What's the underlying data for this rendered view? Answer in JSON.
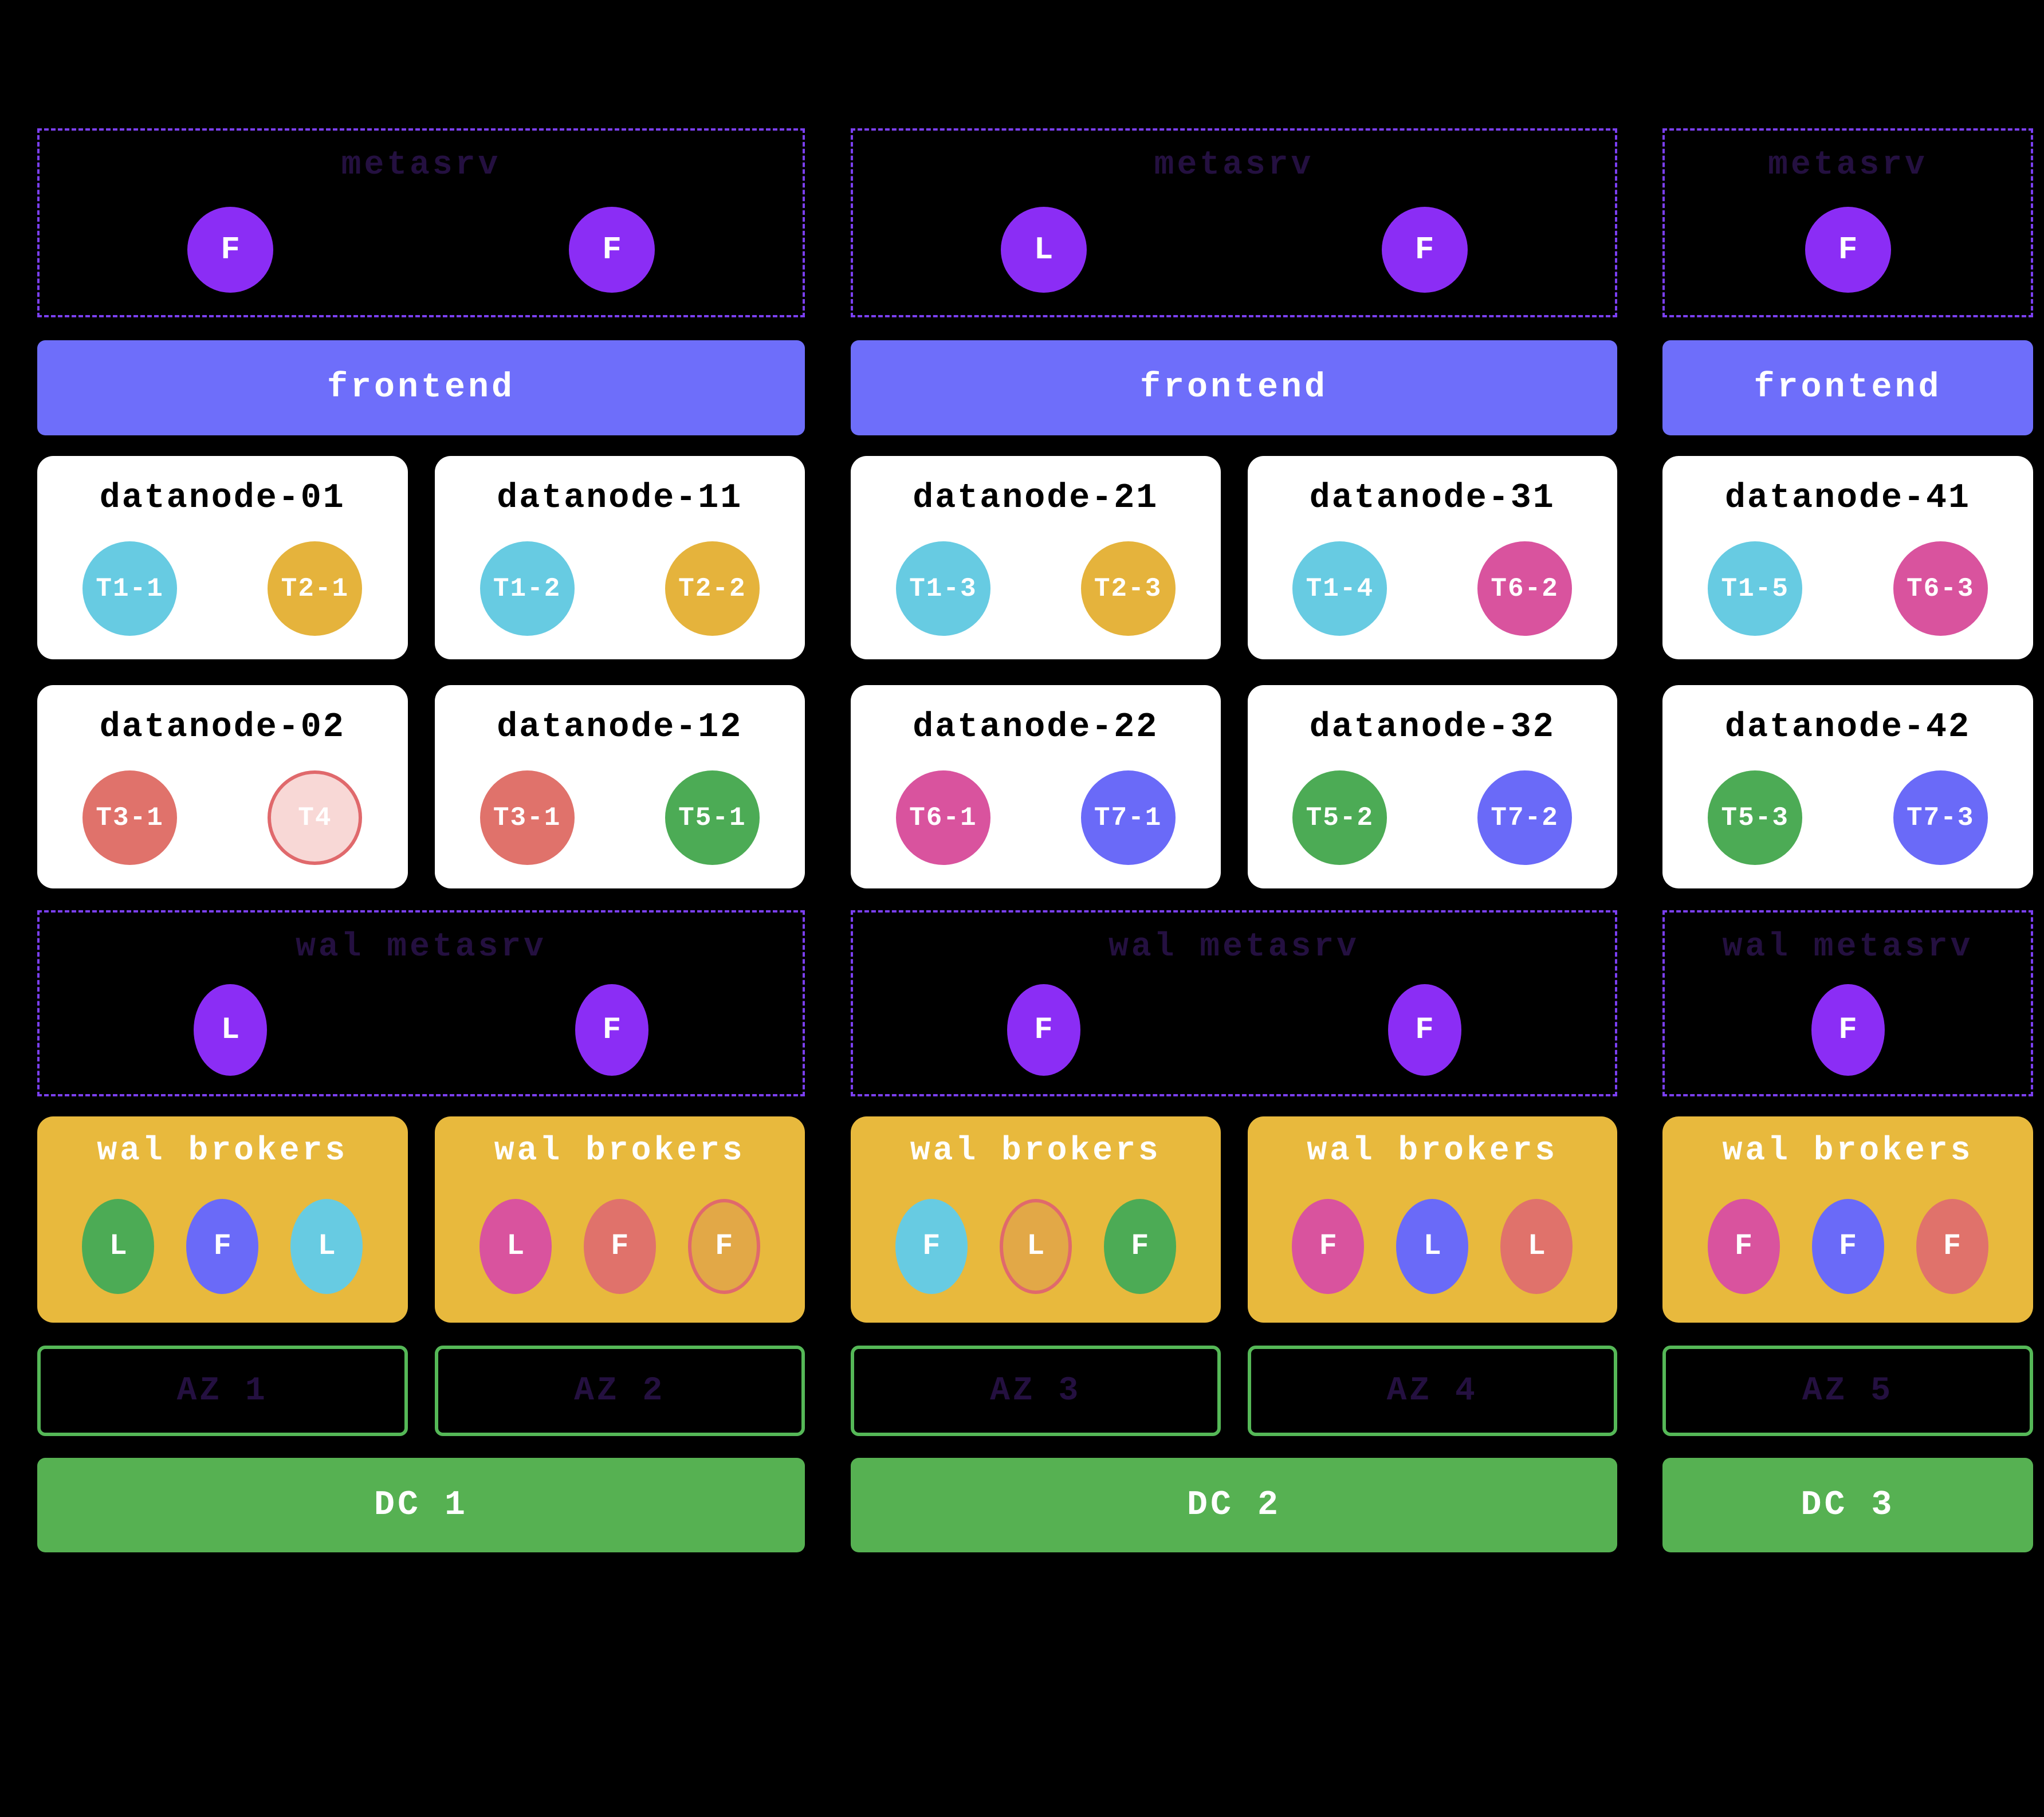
{
  "palette": {
    "background": "#000000",
    "dashed_border": "#7b3ff2",
    "dark_title": "#241040",
    "metasrv_chip": "#8b2df5",
    "frontend_bg": "#6e6efa",
    "card_bg": "#ffffff",
    "broker_bg": "#e8b93d",
    "az_border": "#55b857",
    "dc_bg": "#56b152",
    "cyan": "#67cbe2",
    "gold": "#e5b33c",
    "salmon": "#e0726b",
    "pale_pink": "#f8d8d6",
    "green": "#4cab55",
    "magenta": "#d9539e",
    "periwinkle": "#6a6af8",
    "gold_dark": "#e2a847",
    "border_salmon": "#e0696c"
  },
  "dcs": [
    {
      "label": "DC 1",
      "frontend_label": "frontend",
      "metasrv": {
        "title": "metasrv",
        "nodes": [
          {
            "letter": "F"
          },
          {
            "letter": "F"
          }
        ]
      },
      "wal_metasrv": {
        "title": "wal metasrv",
        "nodes": [
          {
            "letter": "L"
          },
          {
            "letter": "F"
          }
        ]
      },
      "azs": [
        {
          "label": "AZ 1",
          "datanodes": [
            {
              "name": "datanode-01",
              "regions": [
                {
                  "label": "T1-1",
                  "color": "#67cbe2"
                },
                {
                  "label": "T2-1",
                  "color": "#e5b33c"
                }
              ]
            },
            {
              "name": "datanode-02",
              "regions": [
                {
                  "label": "T3-1",
                  "color": "#e0726b"
                },
                {
                  "label": "T4",
                  "color": "#f8d8d6",
                  "border": "#e0696c"
                }
              ]
            }
          ],
          "brokers": {
            "title": "wal brokers",
            "nodes": [
              {
                "letter": "L",
                "color": "#4cab55"
              },
              {
                "letter": "F",
                "color": "#6a6af8"
              },
              {
                "letter": "L",
                "color": "#67cbe2"
              }
            ]
          }
        },
        {
          "label": "AZ 2",
          "datanodes": [
            {
              "name": "datanode-11",
              "regions": [
                {
                  "label": "T1-2",
                  "color": "#67cbe2"
                },
                {
                  "label": "T2-2",
                  "color": "#e5b33c"
                }
              ]
            },
            {
              "name": "datanode-12",
              "regions": [
                {
                  "label": "T3-1",
                  "color": "#e0726b"
                },
                {
                  "label": "T5-1",
                  "color": "#4cab55"
                }
              ]
            }
          ],
          "brokers": {
            "title": "wal brokers",
            "nodes": [
              {
                "letter": "L",
                "color": "#d9539e"
              },
              {
                "letter": "F",
                "color": "#e0726b"
              },
              {
                "letter": "F",
                "color": "#e2a847",
                "border": "#e0696c"
              }
            ]
          }
        }
      ]
    },
    {
      "label": "DC 2",
      "frontend_label": "frontend",
      "metasrv": {
        "title": "metasrv",
        "nodes": [
          {
            "letter": "L"
          },
          {
            "letter": "F"
          }
        ]
      },
      "wal_metasrv": {
        "title": "wal metasrv",
        "nodes": [
          {
            "letter": "F"
          },
          {
            "letter": "F"
          }
        ]
      },
      "azs": [
        {
          "label": "AZ 3",
          "datanodes": [
            {
              "name": "datanode-21",
              "regions": [
                {
                  "label": "T1-3",
                  "color": "#67cbe2"
                },
                {
                  "label": "T2-3",
                  "color": "#e5b33c"
                }
              ]
            },
            {
              "name": "datanode-22",
              "regions": [
                {
                  "label": "T6-1",
                  "color": "#d9539e"
                },
                {
                  "label": "T7-1",
                  "color": "#6a6af8"
                }
              ]
            }
          ],
          "brokers": {
            "title": "wal brokers",
            "nodes": [
              {
                "letter": "F",
                "color": "#67cbe2"
              },
              {
                "letter": "L",
                "color": "#e2a847",
                "border": "#e0696c"
              },
              {
                "letter": "F",
                "color": "#4cab55"
              }
            ]
          }
        },
        {
          "label": "AZ 4",
          "datanodes": [
            {
              "name": "datanode-31",
              "regions": [
                {
                  "label": "T1-4",
                  "color": "#67cbe2"
                },
                {
                  "label": "T6-2",
                  "color": "#d9539e"
                }
              ]
            },
            {
              "name": "datanode-32",
              "regions": [
                {
                  "label": "T5-2",
                  "color": "#4cab55"
                },
                {
                  "label": "T7-2",
                  "color": "#6a6af8"
                }
              ]
            }
          ],
          "brokers": {
            "title": "wal brokers",
            "nodes": [
              {
                "letter": "F",
                "color": "#d9539e"
              },
              {
                "letter": "L",
                "color": "#6a6af8"
              },
              {
                "letter": "L",
                "color": "#e0726b"
              }
            ]
          }
        }
      ]
    },
    {
      "label": "DC 3",
      "frontend_label": "frontend",
      "metasrv": {
        "title": "metasrv",
        "nodes": [
          {
            "letter": "F"
          }
        ]
      },
      "wal_metasrv": {
        "title": "wal metasrv",
        "nodes": [
          {
            "letter": "F"
          }
        ]
      },
      "azs": [
        {
          "label": "AZ 5",
          "datanodes": [
            {
              "name": "datanode-41",
              "regions": [
                {
                  "label": "T1-5",
                  "color": "#67cbe2"
                },
                {
                  "label": "T6-3",
                  "color": "#d9539e"
                }
              ]
            },
            {
              "name": "datanode-42",
              "regions": [
                {
                  "label": "T5-3",
                  "color": "#4cab55"
                },
                {
                  "label": "T7-3",
                  "color": "#6a6af8"
                }
              ]
            }
          ],
          "brokers": {
            "title": "wal brokers",
            "nodes": [
              {
                "letter": "F",
                "color": "#d9539e"
              },
              {
                "letter": "F",
                "color": "#6a6af8"
              },
              {
                "letter": "F",
                "color": "#e0726b"
              }
            ]
          }
        }
      ]
    }
  ]
}
